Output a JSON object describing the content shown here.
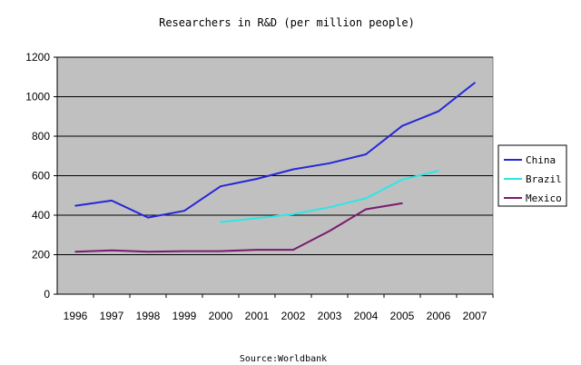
{
  "chart_data": {
    "type": "line",
    "title": "Researchers in R&D (per million people)",
    "source": "Source:Worldbank",
    "categories": [
      "1996",
      "1997",
      "1998",
      "1999",
      "2000",
      "2001",
      "2002",
      "2003",
      "2004",
      "2005",
      "2006",
      "2007"
    ],
    "ylim": [
      0,
      1200
    ],
    "yticks": [
      "0",
      "200",
      "400",
      "600",
      "800",
      "1000",
      "1200"
    ],
    "grid": true,
    "legend_position": "right",
    "plot_background": "#c0c0c0",
    "series": [
      {
        "name": "China",
        "color": "#2626d9",
        "values": [
          448,
          474,
          388,
          422,
          546,
          584,
          632,
          663,
          708,
          852,
          926,
          1071
        ]
      },
      {
        "name": "Brazil",
        "color": "#2ee6e6",
        "values": [
          null,
          null,
          null,
          null,
          365,
          385,
          405,
          440,
          485,
          580,
          625,
          null
        ]
      },
      {
        "name": "Mexico",
        "color": "#7a1a6e",
        "values": [
          215,
          222,
          215,
          218,
          218,
          225,
          225,
          320,
          430,
          460,
          null,
          null
        ]
      }
    ]
  }
}
